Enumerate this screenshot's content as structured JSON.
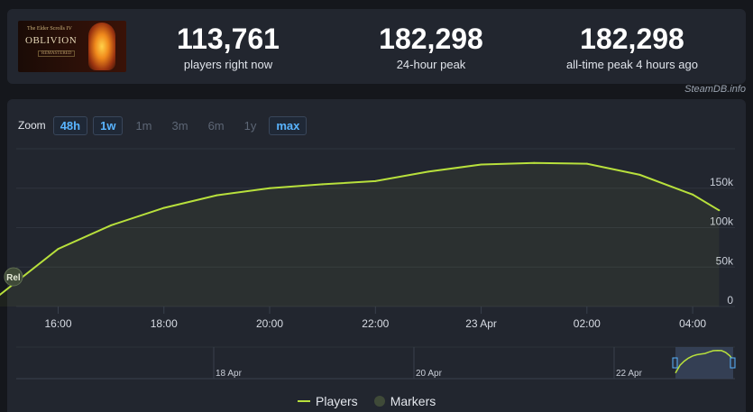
{
  "game": {
    "banner_small": "The Elder Scrolls IV",
    "banner_title": "OBLIVION",
    "banner_sub": "REMASTERED"
  },
  "stats": [
    {
      "value": "113,761",
      "label": "players right now"
    },
    {
      "value": "182,298",
      "label": "24-hour peak"
    },
    {
      "value": "182,298",
      "label": "all-time peak 4 hours ago"
    }
  ],
  "source": "SteamDB.info",
  "zoom": {
    "label": "Zoom",
    "options": [
      "48h",
      "1w",
      "1m",
      "3m",
      "6m",
      "1y",
      "max"
    ],
    "active": [
      "48h",
      "1w",
      "max"
    ]
  },
  "legend": {
    "players": "Players",
    "markers": "Markers"
  },
  "colors": {
    "line": "#b8e03c",
    "accent": "#59b4ff",
    "marker": "#3f4a38"
  },
  "chart_data": {
    "type": "line",
    "series": [
      {
        "name": "Players",
        "x": [
          14.9,
          16,
          17,
          18,
          19,
          20,
          21,
          22,
          23,
          24,
          25,
          26,
          27,
          28,
          28.5
        ],
        "y": [
          15000,
          73000,
          103000,
          125000,
          141000,
          150000,
          155000,
          159000,
          171000,
          180000,
          182000,
          181000,
          167000,
          142000,
          122000
        ]
      }
    ],
    "x_ticks": [
      "16:00",
      "18:00",
      "20:00",
      "22:00",
      "23 Apr",
      "02:00",
      "04:00"
    ],
    "x_tick_values": [
      16,
      18,
      20,
      22,
      24,
      26,
      28
    ],
    "y_ticks": [
      "0",
      "50k",
      "100k",
      "150k"
    ],
    "y_tick_values": [
      0,
      50000,
      100000,
      150000
    ],
    "xlim": [
      14.9,
      28.8
    ],
    "ylim": [
      0,
      200000
    ],
    "annotation": {
      "label": "Rel",
      "x": 14.95
    },
    "navigator_ticks": [
      "18 Apr",
      "20 Apr",
      "22 Apr"
    ],
    "grid": true,
    "legend": "bottom"
  }
}
